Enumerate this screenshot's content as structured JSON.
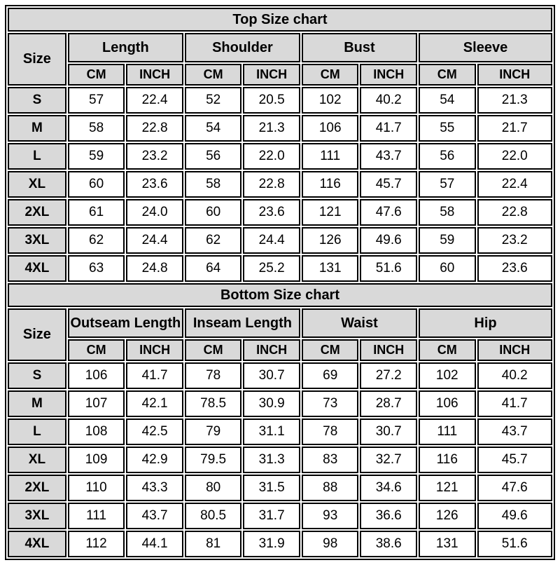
{
  "colors": {
    "header_bg": "#d9d9d9",
    "cell_bg": "#ffffff",
    "border": "#000000"
  },
  "charts": [
    {
      "title": "Top Size chart",
      "size_header": "Size",
      "groups": [
        "Length",
        "Shoulder",
        "Bust",
        "Sleeve"
      ],
      "units": [
        "CM",
        "INCH"
      ],
      "rows": [
        {
          "size": "S",
          "values": [
            "57",
            "22.4",
            "52",
            "20.5",
            "102",
            "40.2",
            "54",
            "21.3"
          ]
        },
        {
          "size": "M",
          "values": [
            "58",
            "22.8",
            "54",
            "21.3",
            "106",
            "41.7",
            "55",
            "21.7"
          ]
        },
        {
          "size": "L",
          "values": [
            "59",
            "23.2",
            "56",
            "22.0",
            "111",
            "43.7",
            "56",
            "22.0"
          ]
        },
        {
          "size": "XL",
          "values": [
            "60",
            "23.6",
            "58",
            "22.8",
            "116",
            "45.7",
            "57",
            "22.4"
          ]
        },
        {
          "size": "2XL",
          "values": [
            "61",
            "24.0",
            "60",
            "23.6",
            "121",
            "47.6",
            "58",
            "22.8"
          ]
        },
        {
          "size": "3XL",
          "values": [
            "62",
            "24.4",
            "62",
            "24.4",
            "126",
            "49.6",
            "59",
            "23.2"
          ]
        },
        {
          "size": "4XL",
          "values": [
            "63",
            "24.8",
            "64",
            "25.2",
            "131",
            "51.6",
            "60",
            "23.6"
          ]
        }
      ]
    },
    {
      "title": "Bottom Size chart",
      "size_header": "Size",
      "groups": [
        "Outseam Length",
        "Inseam Length",
        "Waist",
        "Hip"
      ],
      "units": [
        "CM",
        "INCH"
      ],
      "rows": [
        {
          "size": "S",
          "values": [
            "106",
            "41.7",
            "78",
            "30.7",
            "69",
            "27.2",
            "102",
            "40.2"
          ]
        },
        {
          "size": "M",
          "values": [
            "107",
            "42.1",
            "78.5",
            "30.9",
            "73",
            "28.7",
            "106",
            "41.7"
          ]
        },
        {
          "size": "L",
          "values": [
            "108",
            "42.5",
            "79",
            "31.1",
            "78",
            "30.7",
            "111",
            "43.7"
          ]
        },
        {
          "size": "XL",
          "values": [
            "109",
            "42.9",
            "79.5",
            "31.3",
            "83",
            "32.7",
            "116",
            "45.7"
          ]
        },
        {
          "size": "2XL",
          "values": [
            "110",
            "43.3",
            "80",
            "31.5",
            "88",
            "34.6",
            "121",
            "47.6"
          ]
        },
        {
          "size": "3XL",
          "values": [
            "111",
            "43.7",
            "80.5",
            "31.7",
            "93",
            "36.6",
            "126",
            "49.6"
          ]
        },
        {
          "size": "4XL",
          "values": [
            "112",
            "44.1",
            "81",
            "31.9",
            "98",
            "38.6",
            "131",
            "51.6"
          ]
        }
      ]
    }
  ],
  "chart_data": [
    {
      "type": "table",
      "title": "Top Size chart",
      "row_header": "Size",
      "columns": [
        "Length CM",
        "Length INCH",
        "Shoulder CM",
        "Shoulder INCH",
        "Bust CM",
        "Bust INCH",
        "Sleeve CM",
        "Sleeve INCH"
      ],
      "rows": {
        "S": [
          57,
          22.4,
          52,
          20.5,
          102,
          40.2,
          54,
          21.3
        ],
        "M": [
          58,
          22.8,
          54,
          21.3,
          106,
          41.7,
          55,
          21.7
        ],
        "L": [
          59,
          23.2,
          56,
          22.0,
          111,
          43.7,
          56,
          22.0
        ],
        "XL": [
          60,
          23.6,
          58,
          22.8,
          116,
          45.7,
          57,
          22.4
        ],
        "2XL": [
          61,
          24.0,
          60,
          23.6,
          121,
          47.6,
          58,
          22.8
        ],
        "3XL": [
          62,
          24.4,
          62,
          24.4,
          126,
          49.6,
          59,
          23.2
        ],
        "4XL": [
          63,
          24.8,
          64,
          25.2,
          131,
          51.6,
          60,
          23.6
        ]
      }
    },
    {
      "type": "table",
      "title": "Bottom Size chart",
      "row_header": "Size",
      "columns": [
        "Outseam Length CM",
        "Outseam Length INCH",
        "Inseam Length CM",
        "Inseam Length INCH",
        "Waist CM",
        "Waist INCH",
        "Hip CM",
        "Hip INCH"
      ],
      "rows": {
        "S": [
          106,
          41.7,
          78,
          30.7,
          69,
          27.2,
          102,
          40.2
        ],
        "M": [
          107,
          42.1,
          78.5,
          30.9,
          73,
          28.7,
          106,
          41.7
        ],
        "L": [
          108,
          42.5,
          79,
          31.1,
          78,
          30.7,
          111,
          43.7
        ],
        "XL": [
          109,
          42.9,
          79.5,
          31.3,
          83,
          32.7,
          116,
          45.7
        ],
        "2XL": [
          110,
          43.3,
          80,
          31.5,
          88,
          34.6,
          121,
          47.6
        ],
        "3XL": [
          111,
          43.7,
          80.5,
          31.7,
          93,
          36.6,
          126,
          49.6
        ],
        "4XL": [
          112,
          44.1,
          81,
          31.9,
          98,
          38.6,
          131,
          51.6
        ]
      }
    }
  ]
}
